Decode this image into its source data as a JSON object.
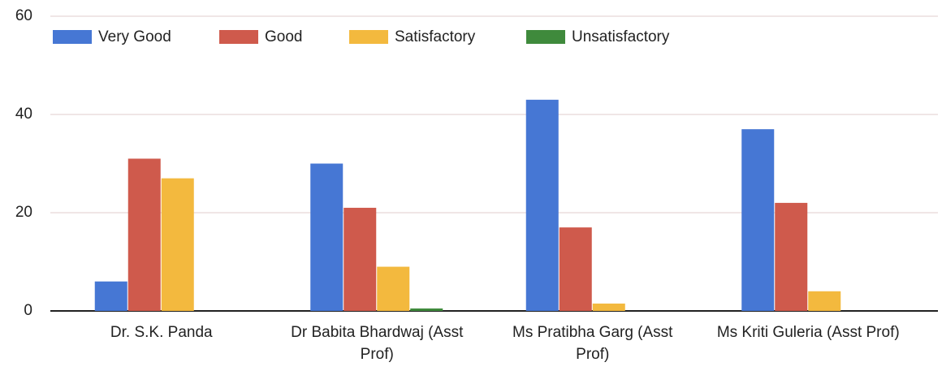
{
  "chart_data": {
    "type": "bar",
    "categories": [
      "Dr. S.K. Panda",
      "Dr Babita Bhardwaj (Asst Prof)",
      "Ms Pratibha Garg (Asst Prof)",
      "Ms Kriti Guleria (Asst Prof)"
    ],
    "series": [
      {
        "name": "Very Good",
        "color": "#4677d4",
        "values": [
          6,
          30,
          43,
          37
        ]
      },
      {
        "name": "Good",
        "color": "#cf5a4c",
        "values": [
          31,
          21,
          17,
          22
        ]
      },
      {
        "name": "Satisfactory",
        "color": "#f3b93e",
        "values": [
          27,
          9,
          1.5,
          4
        ]
      },
      {
        "name": "Unsatisfactory",
        "color": "#3f8a3c",
        "values": [
          0,
          0.5,
          0,
          0
        ]
      }
    ],
    "ylim": [
      0,
      60
    ],
    "yticks": [
      0,
      20,
      40,
      60
    ],
    "grid": true,
    "legend": "top-left"
  }
}
